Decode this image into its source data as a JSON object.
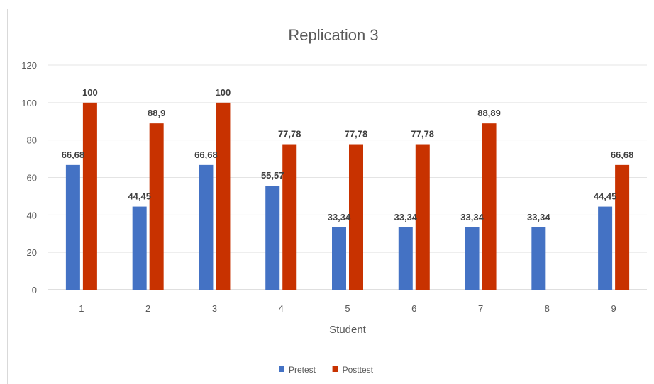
{
  "chart_data": {
    "type": "bar",
    "title": "Replication 3",
    "xlabel": "Student",
    "ylabel": "",
    "ylim": [
      0,
      120
    ],
    "yticks": [
      "0",
      "20",
      "40",
      "60",
      "80",
      "100",
      "120"
    ],
    "categories": [
      "1",
      "2",
      "3",
      "4",
      "5",
      "6",
      "7",
      "8",
      "9"
    ],
    "series": [
      {
        "name": "Pretest",
        "color": "#4472c4",
        "values": [
          66.68,
          44.45,
          66.68,
          55.57,
          33.34,
          33.34,
          33.34,
          33.34,
          44.45
        ],
        "labels": [
          "66,68",
          "44,45",
          "66,68",
          "55,57",
          "33,34",
          "33,34",
          "33,34",
          "33,34",
          "44,45"
        ]
      },
      {
        "name": "Posttest",
        "color": "#c83200",
        "values": [
          100,
          88.9,
          100,
          77.78,
          77.78,
          77.78,
          88.89,
          null,
          66.68
        ],
        "labels": [
          "100",
          "88,9",
          "100",
          "77,78",
          "77,78",
          "77,78",
          "88,89",
          "",
          "66,68"
        ]
      }
    ],
    "grid": true,
    "legend": "bottom-center"
  }
}
